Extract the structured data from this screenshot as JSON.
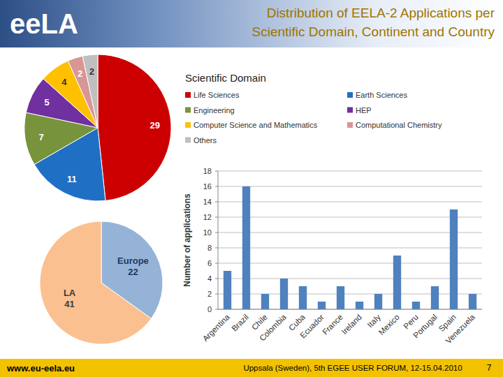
{
  "slide": {
    "title_lines": [
      "Distribution of EELA-2 Applications per",
      "Scientific Domain, Continent and Country"
    ],
    "logo": "eeLA",
    "footer_url": "www.eu-eela.eu",
    "footer_event": "Uppsala (Sweden), 5th EGEE USER FORUM, 12-15.04.2010",
    "page_number": 7
  },
  "chart_data": [
    {
      "type": "pie",
      "title": "Scientific Domain",
      "categories": [
        "Life Sciences",
        "Earth Sciences",
        "Engineering",
        "HEP",
        "Computer Science and Mathematics",
        "Computational Chemistry",
        "Others"
      ],
      "values": [
        29,
        11,
        7,
        5,
        4,
        2,
        2
      ],
      "colors": [
        "#cc0000",
        "#1f6fc5",
        "#77933c",
        "#7030a0",
        "#ffc000",
        "#d99694",
        "#bfbfbf"
      ],
      "data_labels": true,
      "legend": "right"
    },
    {
      "type": "pie",
      "categories": [
        "Europe",
        "LA"
      ],
      "values": [
        22,
        41
      ],
      "colors": [
        "#95b3d7",
        "#fac090"
      ],
      "data_labels": true
    },
    {
      "type": "bar",
      "y_label": "Number of applications",
      "categories": [
        "Argentina",
        "Brazil",
        "Chile",
        "Colombia",
        "Cuba",
        "Ecuador",
        "France",
        "Ireland",
        "Italy",
        "Mexico",
        "Peru",
        "Portugal",
        "Spain",
        "Venezuela"
      ],
      "values": [
        5,
        16,
        2,
        4,
        3,
        1,
        3,
        1,
        2,
        7,
        1,
        3,
        13,
        2
      ],
      "color": "#4f81bd",
      "ylim": [
        0,
        18
      ],
      "yticks": [
        0,
        2,
        4,
        6,
        8,
        10,
        12,
        14,
        16,
        18
      ],
      "grid": true
    }
  ]
}
